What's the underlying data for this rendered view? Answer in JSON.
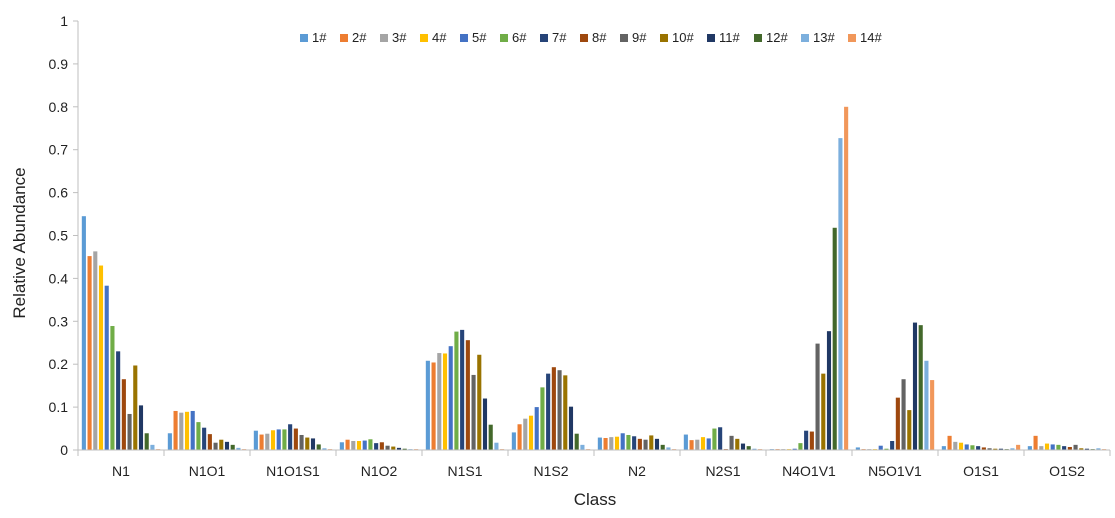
{
  "chart_data": {
    "type": "bar",
    "title": "",
    "xlabel": "Class",
    "ylabel": "Relative Abundance",
    "ylim": [
      0,
      1
    ],
    "yticks": [
      "0",
      "0.1",
      "0.2",
      "0.3",
      "0.4",
      "0.5",
      "0.6",
      "0.7",
      "0.8",
      "0.9",
      "1"
    ],
    "grid": false,
    "legend_position": "top",
    "categories": [
      "N1",
      "N1O1",
      "N1O1S1",
      "N1O2",
      "N1S1",
      "N1S2",
      "N2",
      "N2S1",
      "N4O1V1",
      "N5O1V1",
      "O1S1",
      "O1S2"
    ],
    "series": [
      {
        "name": "1#",
        "color": "#5B9BD5",
        "values": [
          0.545,
          0.039,
          0.045,
          0.018,
          0.208,
          0.041,
          0.029,
          0.036,
          0.002,
          0.006,
          0.009,
          0.009
        ]
      },
      {
        "name": "2#",
        "color": "#ED7D31",
        "values": [
          0.452,
          0.091,
          0.036,
          0.024,
          0.204,
          0.06,
          0.028,
          0.023,
          0.002,
          0.002,
          0.033,
          0.033
        ]
      },
      {
        "name": "3#",
        "color": "#A5A5A5",
        "values": [
          0.463,
          0.087,
          0.038,
          0.021,
          0.226,
          0.073,
          0.03,
          0.024,
          0.002,
          0.002,
          0.019,
          0.009
        ]
      },
      {
        "name": "4#",
        "color": "#FFC000",
        "values": [
          0.43,
          0.089,
          0.046,
          0.021,
          0.225,
          0.08,
          0.031,
          0.03,
          0.002,
          0.002,
          0.017,
          0.015
        ]
      },
      {
        "name": "5#",
        "color": "#4472C4",
        "values": [
          0.383,
          0.091,
          0.048,
          0.022,
          0.242,
          0.1,
          0.039,
          0.027,
          0.003,
          0.01,
          0.013,
          0.013
        ]
      },
      {
        "name": "6#",
        "color": "#70AD47",
        "values": [
          0.289,
          0.065,
          0.048,
          0.025,
          0.276,
          0.146,
          0.035,
          0.05,
          0.016,
          0.003,
          0.011,
          0.012
        ]
      },
      {
        "name": "7#",
        "color": "#264478",
        "values": [
          0.23,
          0.052,
          0.06,
          0.016,
          0.28,
          0.178,
          0.032,
          0.053,
          0.045,
          0.021,
          0.009,
          0.009
        ]
      },
      {
        "name": "8#",
        "color": "#9E480E",
        "values": [
          0.165,
          0.037,
          0.05,
          0.018,
          0.256,
          0.193,
          0.026,
          0.002,
          0.043,
          0.122,
          0.006,
          0.007
        ]
      },
      {
        "name": "9#",
        "color": "#636363",
        "values": [
          0.084,
          0.017,
          0.035,
          0.01,
          0.175,
          0.186,
          0.024,
          0.033,
          0.248,
          0.165,
          0.004,
          0.012
        ]
      },
      {
        "name": "10#",
        "color": "#997300",
        "values": [
          0.197,
          0.024,
          0.029,
          0.008,
          0.222,
          0.174,
          0.034,
          0.026,
          0.178,
          0.093,
          0.003,
          0.004
        ]
      },
      {
        "name": "11#",
        "color": "#203864",
        "values": [
          0.104,
          0.019,
          0.027,
          0.005,
          0.12,
          0.101,
          0.026,
          0.015,
          0.277,
          0.297,
          0.003,
          0.003
        ]
      },
      {
        "name": "12#",
        "color": "#43682B",
        "values": [
          0.039,
          0.012,
          0.013,
          0.003,
          0.059,
          0.038,
          0.012,
          0.009,
          0.518,
          0.291,
          0.002,
          0.002
        ]
      },
      {
        "name": "13#",
        "color": "#7CAFDD",
        "values": [
          0.012,
          0.005,
          0.004,
          0.002,
          0.017,
          0.012,
          0.006,
          0.003,
          0.727,
          0.208,
          0.004,
          0.004
        ]
      },
      {
        "name": "14#",
        "color": "#F1975A",
        "values": [
          0.002,
          0.002,
          0.002,
          0.002,
          0.002,
          0.002,
          0.002,
          0.002,
          0.8,
          0.163,
          0.012,
          0.002
        ]
      }
    ]
  }
}
